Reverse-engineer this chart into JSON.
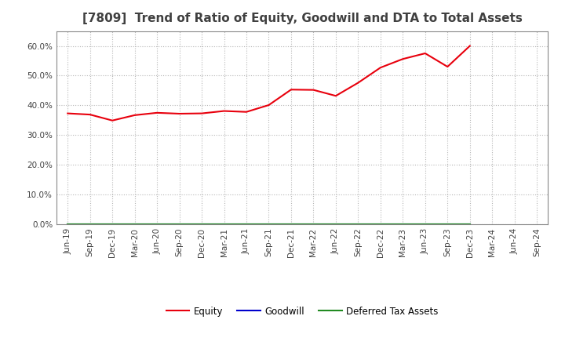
{
  "title": "[7809]  Trend of Ratio of Equity, Goodwill and DTA to Total Assets",
  "x_labels": [
    "Jun-19",
    "Sep-19",
    "Dec-19",
    "Mar-20",
    "Jun-20",
    "Sep-20",
    "Dec-20",
    "Mar-21",
    "Jun-21",
    "Sep-21",
    "Dec-21",
    "Mar-22",
    "Jun-22",
    "Sep-22",
    "Dec-22",
    "Mar-23",
    "Jun-23",
    "Sep-23",
    "Dec-23",
    "Mar-24",
    "Jun-24",
    "Sep-24"
  ],
  "equity": [
    0.373,
    0.369,
    0.349,
    0.367,
    0.375,
    0.372,
    0.373,
    0.381,
    0.378,
    0.401,
    0.453,
    0.452,
    0.432,
    0.476,
    0.527,
    0.556,
    0.575,
    0.53,
    0.6,
    null,
    null,
    null
  ],
  "goodwill": [
    0.0,
    0.0,
    0.0,
    0.0,
    0.0,
    0.0,
    0.0,
    0.0,
    0.0,
    0.0,
    0.0,
    0.0,
    0.0,
    0.0,
    0.0,
    0.0,
    0.0,
    0.0,
    0.0,
    null,
    null,
    null
  ],
  "dta": [
    0.0,
    0.0,
    0.0,
    0.0,
    0.0,
    0.0,
    0.0,
    0.0,
    0.0,
    0.0,
    0.0,
    0.0,
    0.0,
    0.0,
    0.0,
    0.0,
    0.0,
    0.0,
    0.0,
    null,
    null,
    null
  ],
  "equity_color": "#e8000d",
  "goodwill_color": "#0000cd",
  "dta_color": "#228B22",
  "ylim": [
    0.0,
    0.65
  ],
  "yticks": [
    0.0,
    0.1,
    0.2,
    0.3,
    0.4,
    0.5,
    0.6
  ],
  "background_color": "#ffffff",
  "plot_bg_color": "#ffffff",
  "grid_color": "#b0b0b0",
  "title_fontsize": 11,
  "title_color": "#404040",
  "tick_fontsize": 7.5,
  "legend_labels": [
    "Equity",
    "Goodwill",
    "Deferred Tax Assets"
  ]
}
